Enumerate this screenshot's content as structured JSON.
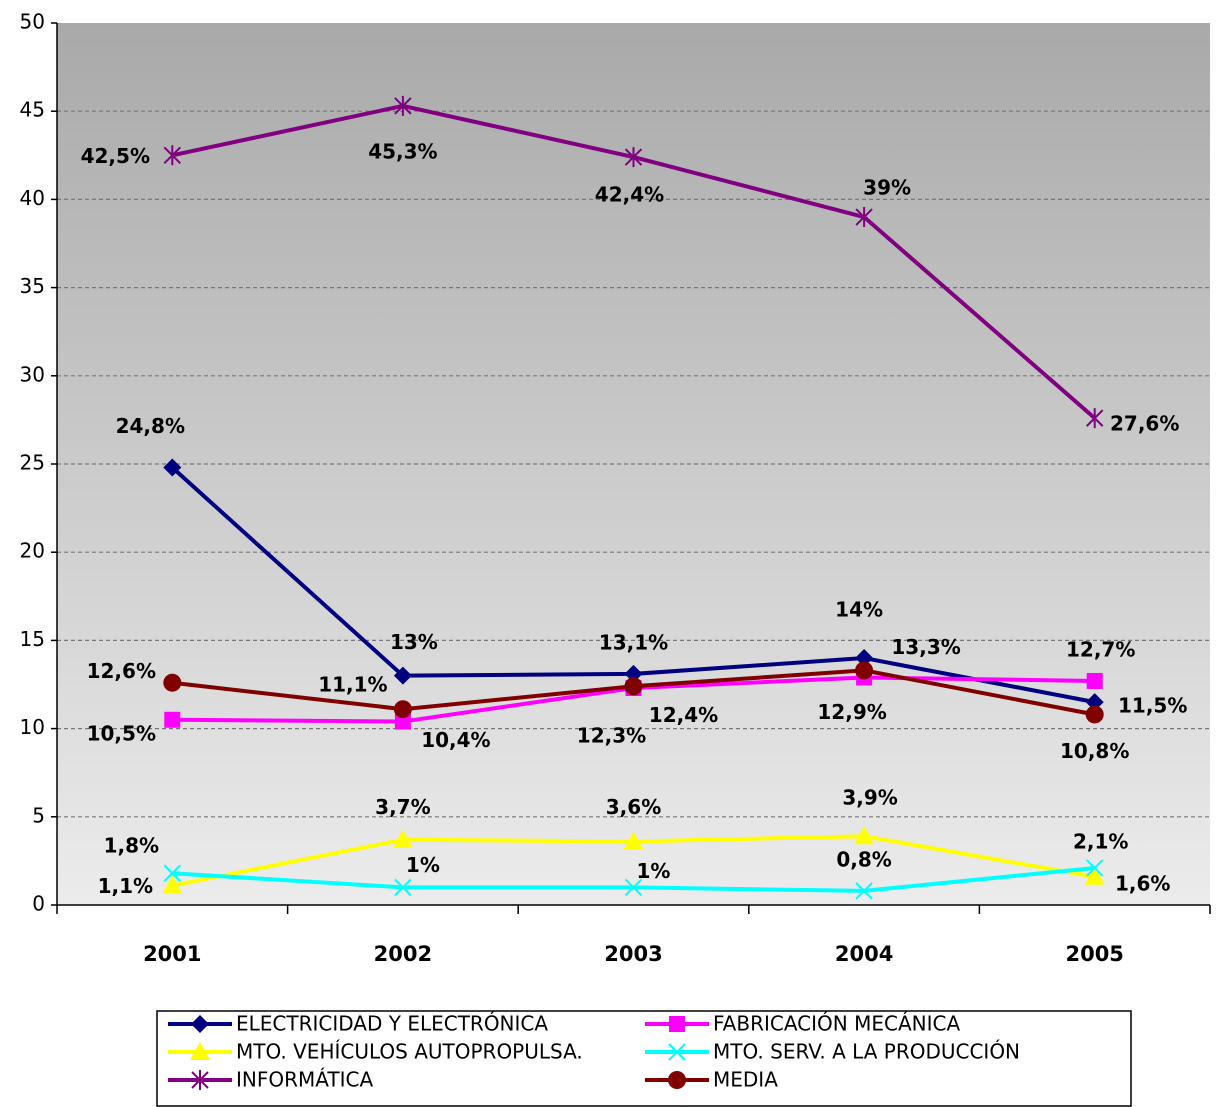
{
  "chart_data": {
    "type": "line",
    "categories": [
      "2001",
      "2002",
      "2003",
      "2004",
      "2005"
    ],
    "ylim": [
      0,
      50
    ],
    "yticks": [
      0,
      5,
      10,
      15,
      20,
      25,
      30,
      35,
      40,
      45,
      50
    ],
    "grid": true,
    "legend": "bottom",
    "series": [
      {
        "name": "ELECTRICIDAD Y ELECTRÓNICA",
        "color": "#000080",
        "marker": "diamond",
        "values": [
          24.8,
          13,
          13.1,
          14,
          11.5
        ],
        "value_labels": [
          "24,8%",
          "13%",
          "13,1%",
          "14%",
          "11,5%"
        ]
      },
      {
        "name": "FABRICACIÓN MECÁNICA",
        "color": "#ff00ff",
        "marker": "square",
        "values": [
          10.5,
          10.4,
          12.3,
          12.9,
          12.7
        ],
        "value_labels": [
          "10,5%",
          "10,4%",
          "12,3%",
          "12,9%",
          "12,7%"
        ]
      },
      {
        "name": "MTO. VEHÍCULOS AUTOPROPULSA.",
        "color": "#ffff00",
        "marker": "triangle",
        "values": [
          1.1,
          3.7,
          3.6,
          3.9,
          1.6
        ],
        "value_labels": [
          "1,1%",
          "3,7%",
          "3,6%",
          "3,9%",
          "1,6%"
        ]
      },
      {
        "name": "MTO. SERV. A LA PRODUCCIÓN",
        "color": "#00ffff",
        "marker": "x",
        "values": [
          1.8,
          1,
          1,
          0.8,
          2.1
        ],
        "value_labels": [
          "1,8%",
          "1%",
          "1%",
          "0,8%",
          "2,1%"
        ]
      },
      {
        "name": "INFORMÁTICA",
        "color": "#800080",
        "marker": "star",
        "values": [
          42.5,
          45.3,
          42.4,
          39,
          27.6
        ],
        "value_labels": [
          "42,5%",
          "45,3%",
          "42,4%",
          "39%",
          "27,6%"
        ]
      },
      {
        "name": "MEDIA",
        "color": "#800000",
        "marker": "circle",
        "values": [
          12.6,
          11.1,
          12.4,
          13.3,
          10.8
        ],
        "value_labels": [
          "12,6%",
          "11,1%",
          "12,4%",
          "13,3%",
          "10,8%"
        ]
      }
    ]
  }
}
